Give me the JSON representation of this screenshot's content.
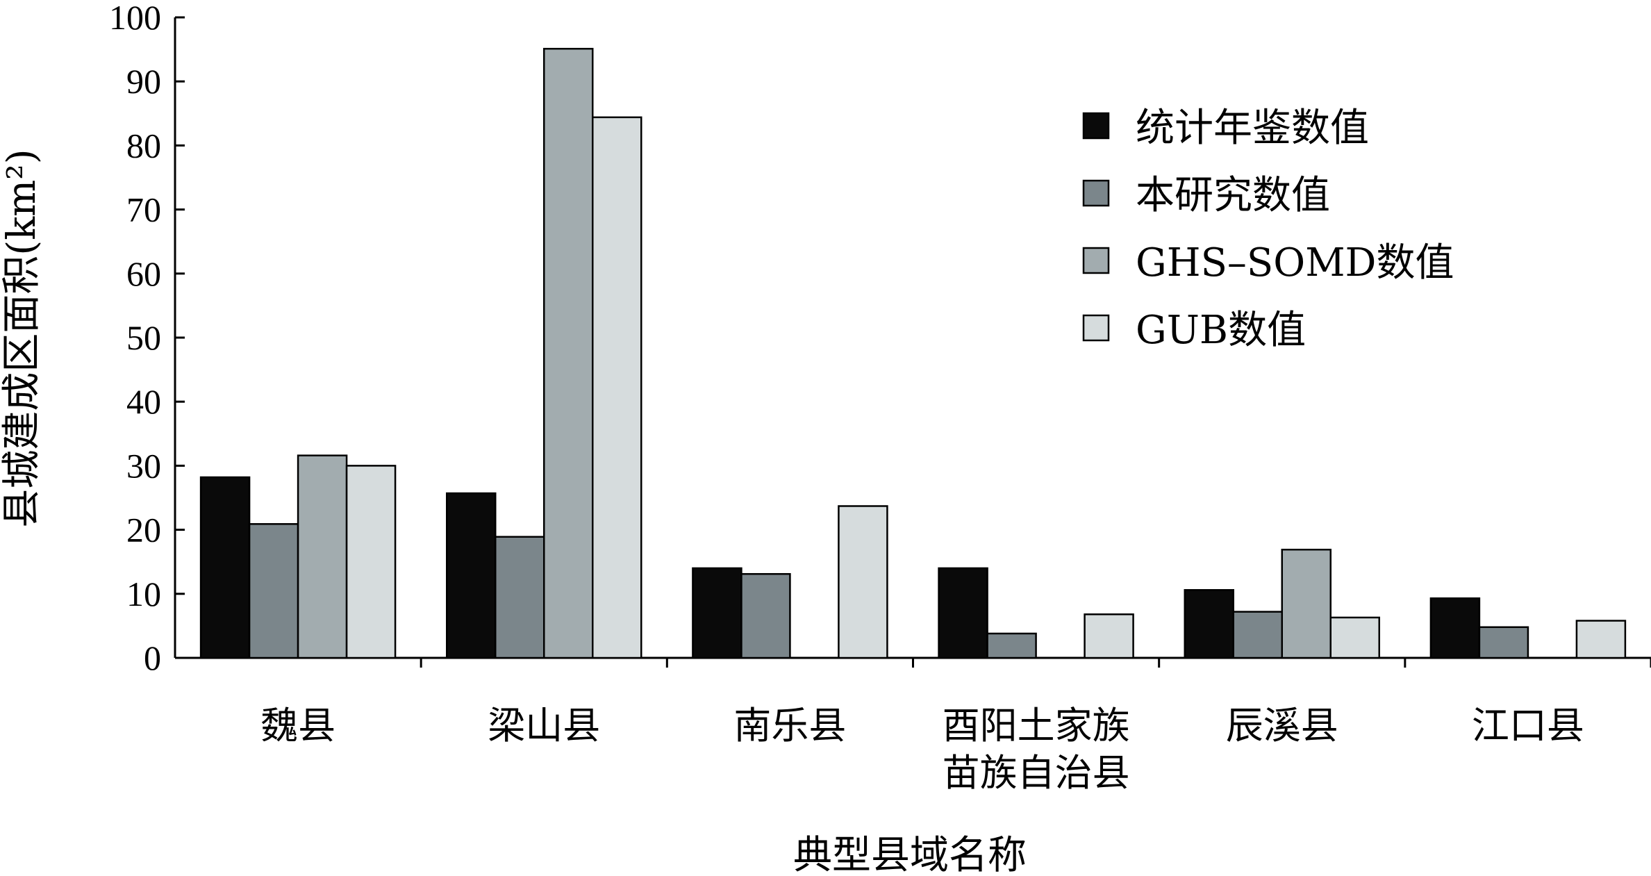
{
  "chart_data": {
    "type": "bar",
    "categories": [
      "魏县",
      "梁山县",
      "南乐县",
      "酉阳土家族\n苗族自治县",
      "辰溪县",
      "江口县"
    ],
    "series": [
      {
        "name": "统计年鉴数值",
        "color": "#0a0a0a",
        "values": [
          28.2,
          25.7,
          14.0,
          14.0,
          10.6,
          9.3
        ]
      },
      {
        "name": "本研究数值",
        "color": "#7b868b",
        "values": [
          20.9,
          18.9,
          13.1,
          3.8,
          7.2,
          4.8
        ]
      },
      {
        "name": "GHS–SOMD数值",
        "color": "#a2acaf",
        "values": [
          31.6,
          95.1,
          0,
          0,
          16.9,
          0
        ]
      },
      {
        "name": "GUB数值",
        "color": "#d6dcdd",
        "values": [
          30.0,
          84.4,
          23.7,
          6.8,
          6.3,
          5.8
        ]
      }
    ],
    "xlabel": "典型县域名称",
    "ylabel": "县城建成区面积(km²)",
    "ylim": [
      0,
      100
    ],
    "yticks": [
      0,
      10,
      20,
      30,
      40,
      50,
      60,
      70,
      80,
      90,
      100
    ],
    "legend_position": "top-right",
    "grid": false
  }
}
